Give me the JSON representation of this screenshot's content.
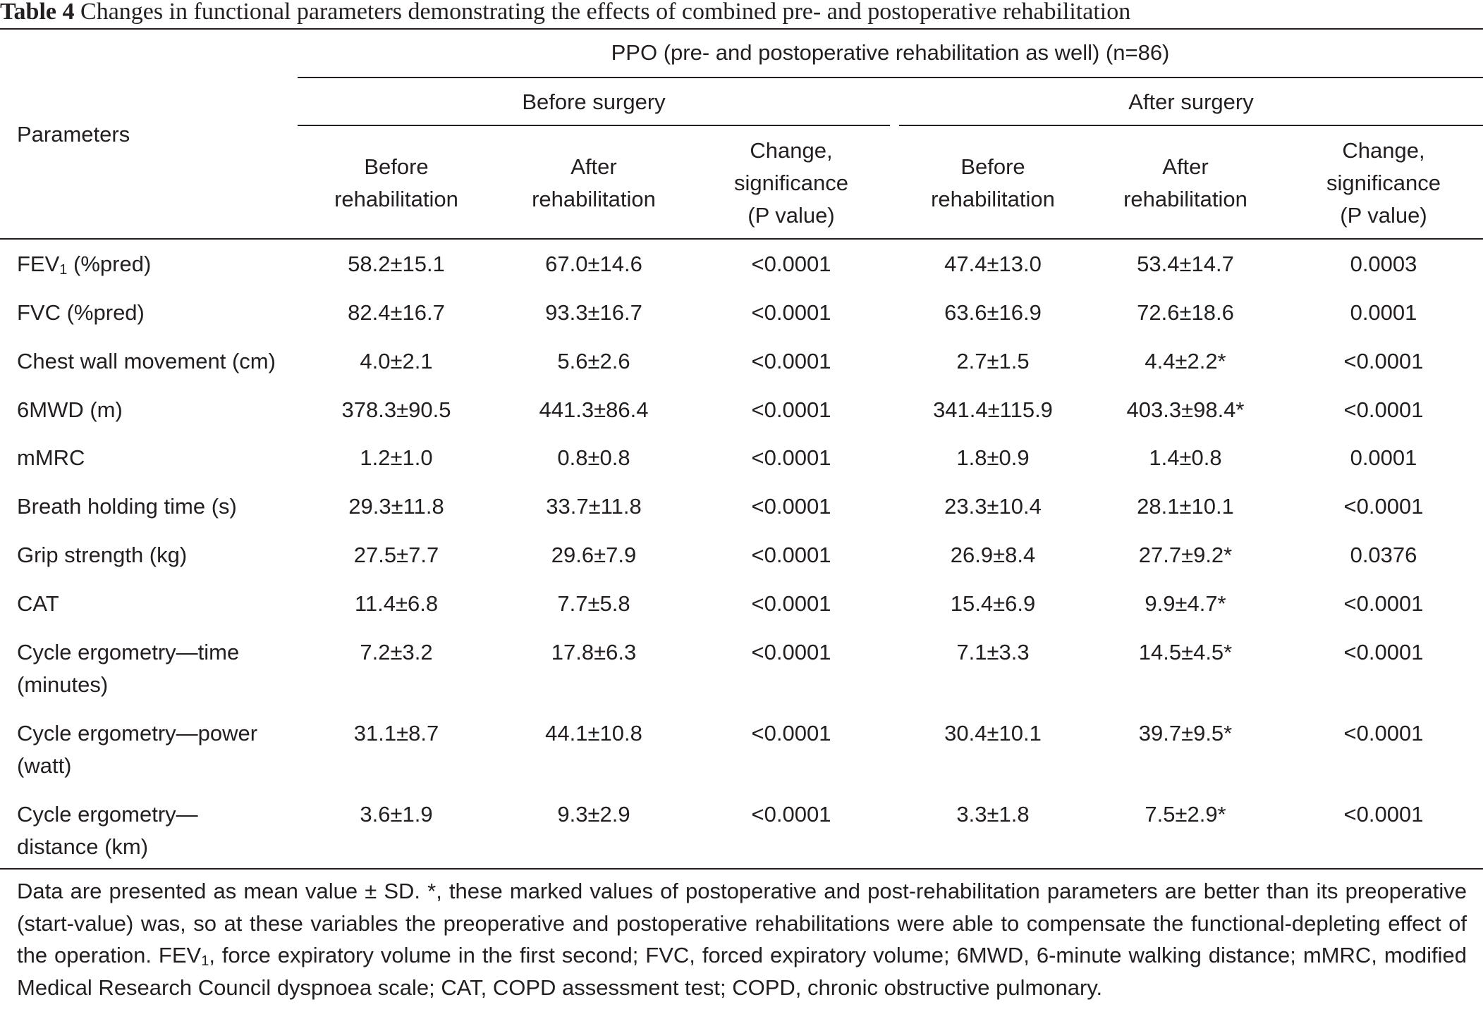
{
  "caption": {
    "label": "Table 4",
    "text": "Changes in functional parameters demonstrating the effects of combined pre- and postoperative rehabilitation"
  },
  "header": {
    "group": "PPO (pre- and postoperative rehabilitation as well) (n=86)",
    "parameters": "Parameters",
    "before_surgery": "Before surgery",
    "after_surgery": "After surgery",
    "before_rehab": [
      "Before",
      "rehabilitation"
    ],
    "after_rehab": [
      "After",
      "rehabilitation"
    ],
    "change": [
      "Change,",
      "significance",
      "(P value)"
    ]
  },
  "rows": [
    {
      "param": [
        "FEV",
        "1",
        " (%pred)"
      ],
      "bs_before": "58.2±15.1",
      "bs_after": "67.0±14.6",
      "bs_p": "<0.0001",
      "as_before": "47.4±13.0",
      "as_after": "53.4±14.7",
      "as_p": "0.0003"
    },
    {
      "param": [
        "FVC (%pred)"
      ],
      "bs_before": "82.4±16.7",
      "bs_after": "93.3±16.7",
      "bs_p": "<0.0001",
      "as_before": "63.6±16.9",
      "as_after": "72.6±18.6",
      "as_p": "0.0001"
    },
    {
      "param": [
        "Chest wall movement (cm)"
      ],
      "bs_before": "4.0±2.1",
      "bs_after": "5.6±2.6",
      "bs_p": "<0.0001",
      "as_before": "2.7±1.5",
      "as_after": "4.4±2.2*",
      "as_p": "<0.0001"
    },
    {
      "param": [
        "6MWD (m)"
      ],
      "bs_before": "378.3±90.5",
      "bs_after": "441.3±86.4",
      "bs_p": "<0.0001",
      "as_before": "341.4±115.9",
      "as_after": "403.3±98.4*",
      "as_p": "<0.0001"
    },
    {
      "param": [
        "mMRC"
      ],
      "bs_before": "1.2±1.0",
      "bs_after": "0.8±0.8",
      "bs_p": "<0.0001",
      "as_before": "1.8±0.9",
      "as_after": "1.4±0.8",
      "as_p": "0.0001"
    },
    {
      "param": [
        "Breath holding time (s)"
      ],
      "bs_before": "29.3±11.8",
      "bs_after": "33.7±11.8",
      "bs_p": "<0.0001",
      "as_before": "23.3±10.4",
      "as_after": "28.1±10.1",
      "as_p": "<0.0001"
    },
    {
      "param": [
        "Grip strength (kg)"
      ],
      "bs_before": "27.5±7.7",
      "bs_after": "29.6±7.9",
      "bs_p": "<0.0001",
      "as_before": "26.9±8.4",
      "as_after": "27.7±9.2*",
      "as_p": "0.0376"
    },
    {
      "param": [
        "CAT"
      ],
      "bs_before": "11.4±6.8",
      "bs_after": "7.7±5.8",
      "bs_p": "<0.0001",
      "as_before": "15.4±6.9",
      "as_after": "9.9±4.7*",
      "as_p": "<0.0001"
    },
    {
      "param": [
        "Cycle ergometry—time",
        "(minutes)"
      ],
      "bs_before": "7.2±3.2",
      "bs_after": "17.8±6.3",
      "bs_p": "<0.0001",
      "as_before": "7.1±3.3",
      "as_after": "14.5±4.5*",
      "as_p": "<0.0001"
    },
    {
      "param": [
        "Cycle ergometry—power",
        "(watt)"
      ],
      "bs_before": "31.1±8.7",
      "bs_after": "44.1±10.8",
      "bs_p": "<0.0001",
      "as_before": "30.4±10.1",
      "as_after": "39.7±9.5*",
      "as_p": "<0.0001"
    },
    {
      "param": [
        "Cycle ergometry—",
        "distance (km)"
      ],
      "bs_before": "3.6±1.9",
      "bs_after": "9.3±2.9",
      "bs_p": "<0.0001",
      "as_before": "3.3±1.8",
      "as_after": "7.5±2.9*",
      "as_p": "<0.0001"
    }
  ],
  "footnote": {
    "part1": "Data are presented as mean value ± SD. *, these marked values of postoperative and post-rehabilitation parameters are better than its preoperative (start-value) was, so at these variables the preoperative and postoperative rehabilitations were able to compensate the functional-depleting effect of the operation. FEV",
    "sub": "1",
    "part2": ", force expiratory volume in the first second; FVC, forced expiratory volume; 6MWD, 6-minute walking distance; mMRC, modified Medical Research Council dyspnoea scale; CAT, COPD assessment test; COPD, chronic obstructive pulmonary."
  }
}
